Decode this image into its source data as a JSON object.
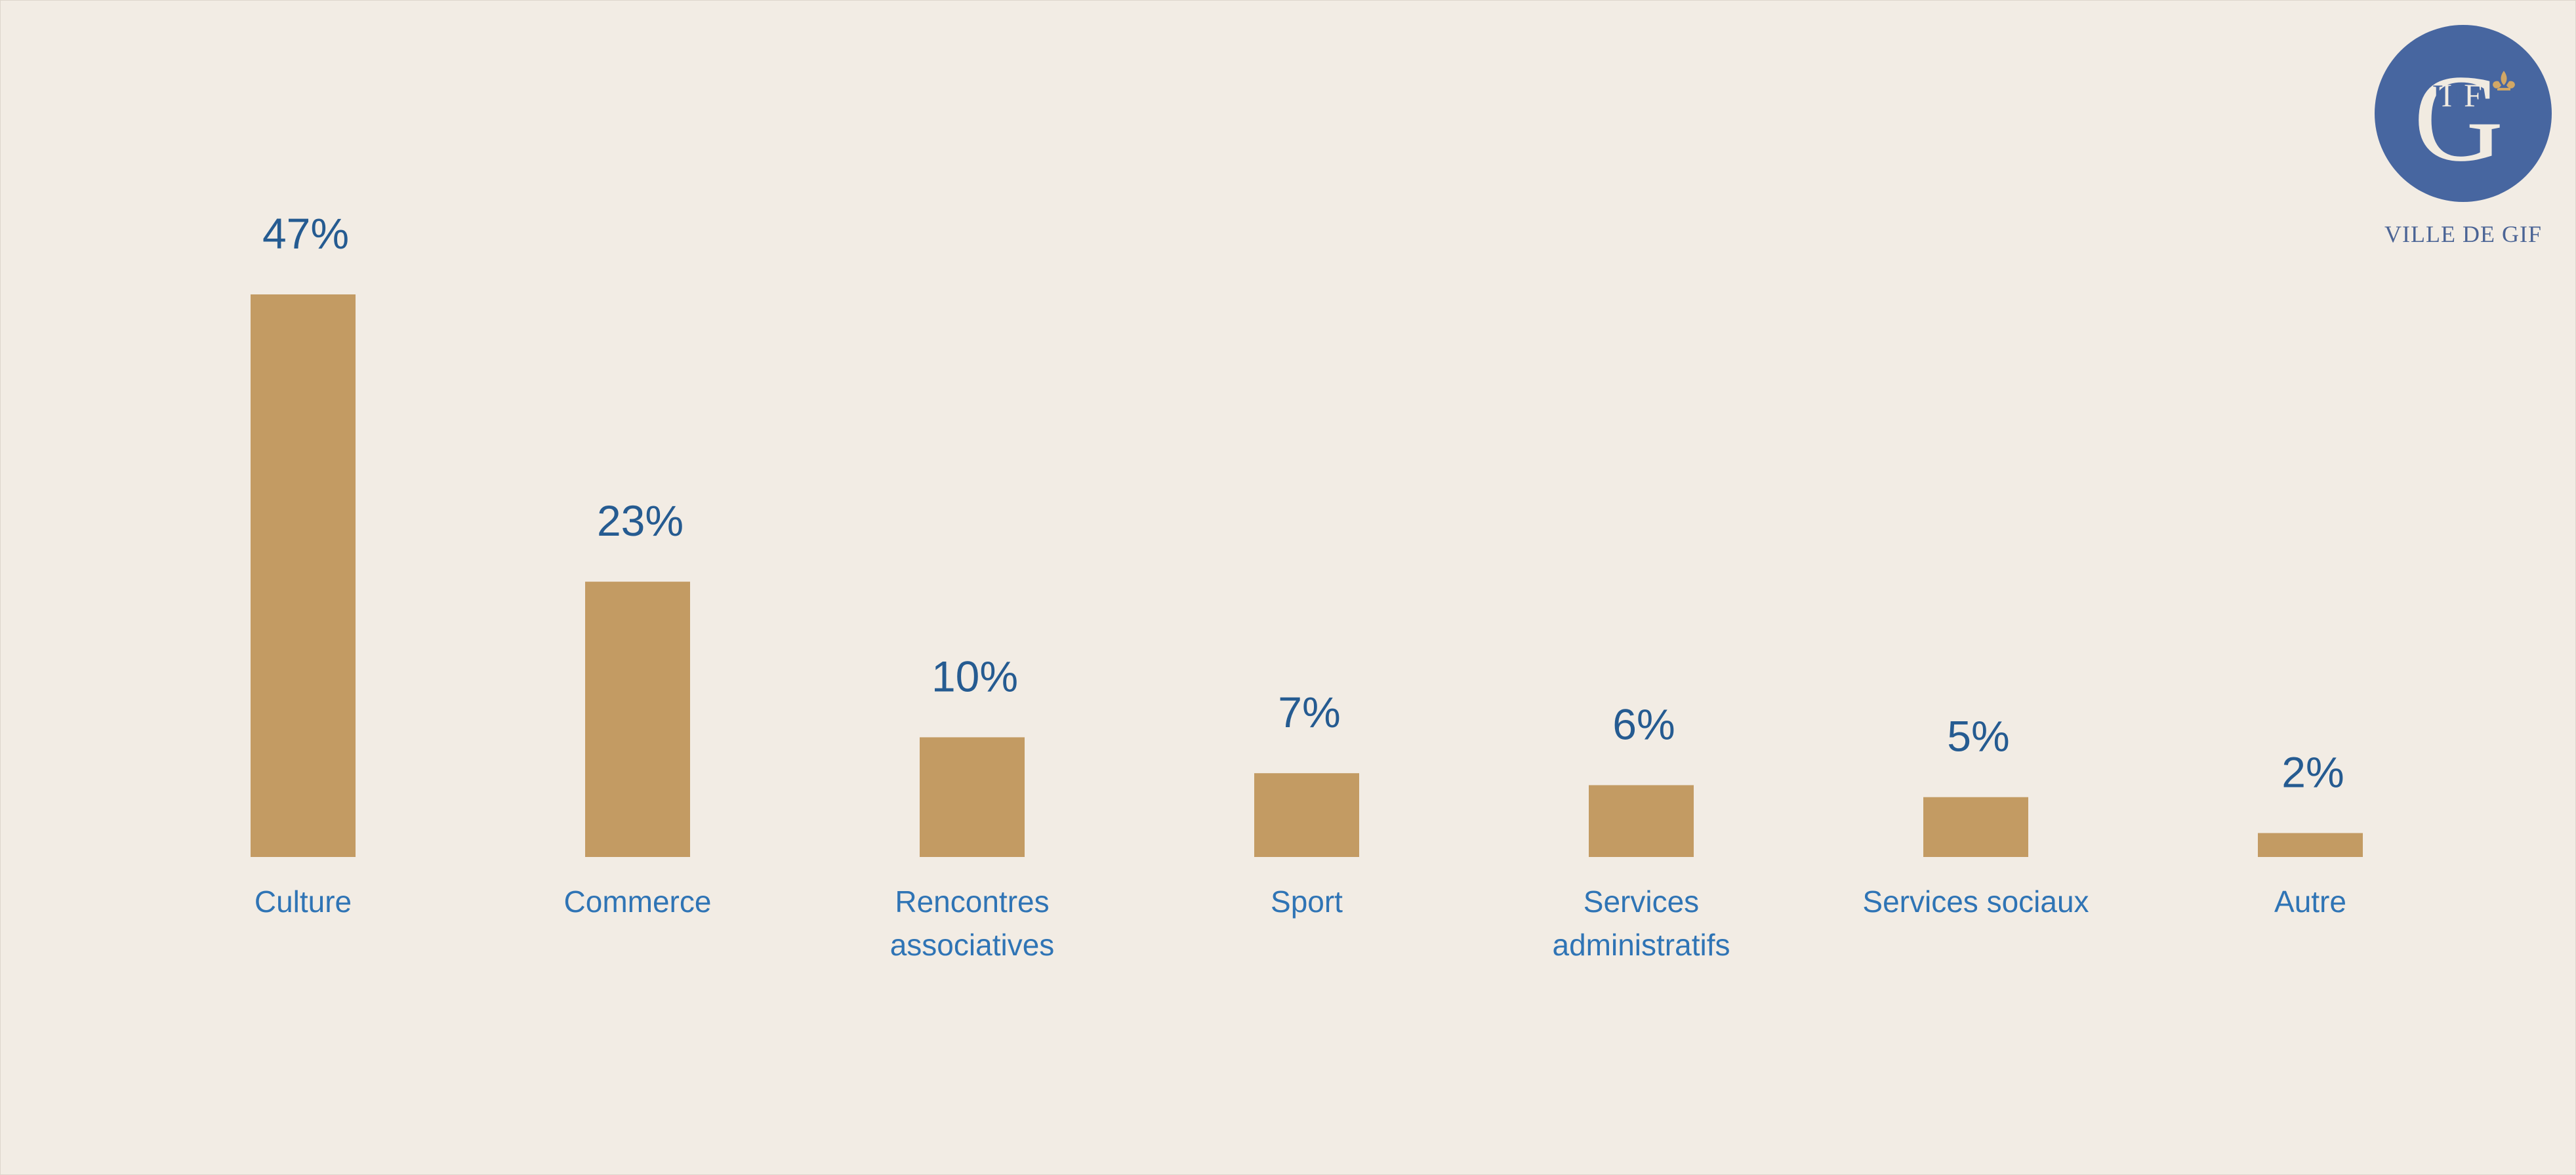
{
  "logo": {
    "caption": "VILLE DE GIF",
    "mark_text": "GIF",
    "icon": "fleur-de-lis-icon"
  },
  "colors": {
    "background": "#f2ece4",
    "bar": "#c39b63",
    "value_label": "#255b91",
    "category_label": "#2f74b5",
    "logo_circle": "#4766a0",
    "logo_accent": "#d1a765"
  },
  "chart_data": {
    "type": "bar",
    "categories": [
      [
        "Culture"
      ],
      [
        "Commerce"
      ],
      [
        "Rencontres",
        "associatives"
      ],
      [
        "Sport"
      ],
      [
        "Services",
        "administratifs"
      ],
      [
        "Services sociaux"
      ],
      [
        "Autre"
      ]
    ],
    "values": [
      47,
      23,
      10,
      7,
      6,
      5,
      2
    ],
    "value_suffix": "%",
    "ylim": [
      0,
      47
    ],
    "grid": false,
    "legend": "none"
  }
}
